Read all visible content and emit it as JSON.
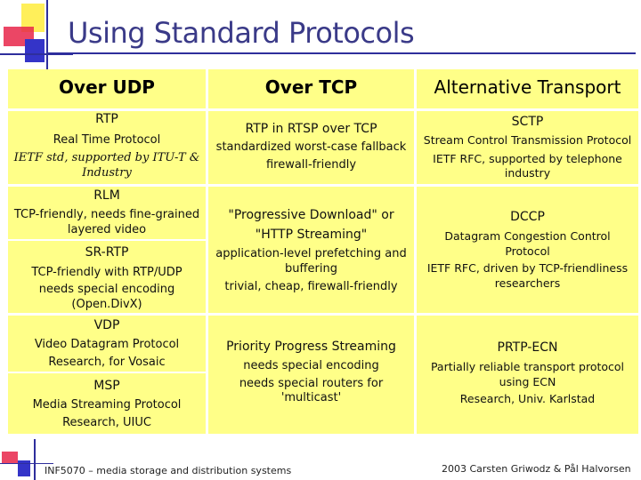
{
  "title": "Using Standard Protocols",
  "headers": [
    "Over UDP",
    "Over TCP",
    "Alternative Transport"
  ],
  "udp": [
    {
      "name": "RTP",
      "lines": [
        "Real Time Protocol",
        "IETF std, supported by ITU-T &",
        "Industry"
      ]
    },
    {
      "name": "RLM",
      "lines": [
        "TCP-friendly, needs fine-grained",
        "layered video"
      ]
    },
    {
      "name": "SR-RTP",
      "lines": [
        "TCP-friendly with RTP/UDP",
        "needs special encoding",
        "(Open.DivX)"
      ]
    },
    {
      "name": "VDP",
      "lines": [
        "Video Datagram Protocol",
        "Research, for Vosaic"
      ]
    },
    {
      "name": "MSP",
      "lines": [
        "Media Streaming Protocol",
        "Research, UIUC"
      ]
    }
  ],
  "tcp": [
    {
      "name": "RTP in RTSP over TCP",
      "lines": [
        "standardized worst-case fallback",
        "firewall-friendly"
      ]
    },
    {
      "name": "\"Progressive Download\" or",
      "name2": "\"HTTP Streaming\"",
      "lines": [
        "application-level prefetching and",
        "buffering",
        "trivial, cheap, firewall-friendly"
      ]
    },
    {
      "name": "Priority Progress Streaming",
      "lines": [
        "needs special encoding",
        "needs special routers for 'multicast'"
      ]
    }
  ],
  "alt": [
    {
      "name": "SCTP",
      "lines": [
        "Stream Control Transmission Protocol",
        "IETF RFC, supported by telephone",
        "industry"
      ]
    },
    {
      "name": "DCCP",
      "lines": [
        "Datagram Congestion Control",
        "Protocol",
        "IETF RFC, driven by TCP-friendliness",
        "researchers"
      ]
    },
    {
      "name": "PRTP-ECN",
      "lines": [
        "Partially reliable transport protocol",
        "using ECN",
        "Research, Univ. Karlstad"
      ]
    }
  ],
  "footer": {
    "left": "INF5070 – media storage and distribution systems",
    "right": "2003  Carsten Griwodz & Pål Halvorsen"
  },
  "colors": {
    "cell": "#ffff88",
    "title": "#3a3a88",
    "accent_line": "#2e2e9c"
  }
}
